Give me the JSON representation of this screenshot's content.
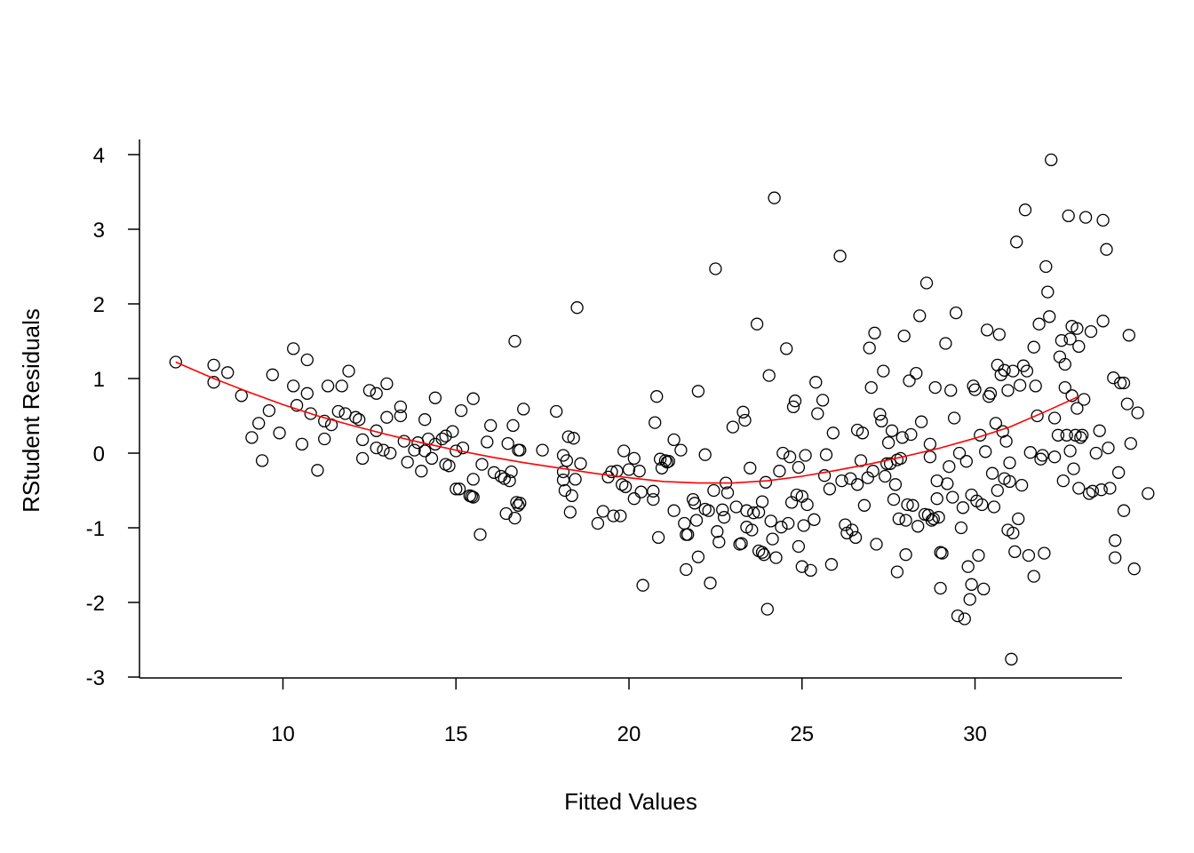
{
  "chart_data": {
    "type": "scatter",
    "title": "",
    "xlabel": "Fitted Values",
    "ylabel": "RStudent Residuals",
    "xlim": [
      5.9,
      34.3
    ],
    "ylim": [
      -3.05,
      4.2
    ],
    "x_ticks": [
      10,
      15,
      20,
      25,
      30
    ],
    "y_ticks": [
      -3,
      -2,
      -1,
      0,
      1,
      2,
      3,
      4
    ],
    "x_tick_labels": [
      "10",
      "15",
      "20",
      "25",
      "30"
    ],
    "y_tick_labels": [
      "-3",
      "-2",
      "-1",
      "0",
      "1",
      "2",
      "3",
      "4"
    ],
    "grid": false,
    "colors": {
      "points": "#000000",
      "smoother": "#ff0000"
    },
    "smoother": {
      "x": [
        6.9,
        8,
        9,
        10,
        11,
        12,
        13,
        14,
        15,
        16,
        17,
        18,
        19,
        20,
        21,
        22,
        23,
        24,
        25,
        26,
        27,
        28,
        29,
        30,
        31,
        32,
        33
      ],
      "y": [
        1.22,
        1.0,
        0.82,
        0.65,
        0.5,
        0.37,
        0.25,
        0.14,
        0.04,
        -0.05,
        -0.13,
        -0.2,
        -0.27,
        -0.33,
        -0.38,
        -0.4,
        -0.4,
        -0.37,
        -0.31,
        -0.23,
        -0.14,
        -0.04,
        0.07,
        0.2,
        0.35,
        0.55,
        0.76
      ]
    },
    "points": [
      [
        6.9,
        1.22
      ],
      [
        8.0,
        1.18
      ],
      [
        8.0,
        0.95
      ],
      [
        8.4,
        1.08
      ],
      [
        8.8,
        0.77
      ],
      [
        9.1,
        0.21
      ],
      [
        9.3,
        0.4
      ],
      [
        9.4,
        -0.1
      ],
      [
        9.6,
        0.57
      ],
      [
        9.7,
        1.05
      ],
      [
        9.9,
        0.27
      ],
      [
        10.3,
        1.4
      ],
      [
        10.3,
        0.9
      ],
      [
        10.4,
        0.64
      ],
      [
        10.55,
        0.12
      ],
      [
        10.7,
        0.8
      ],
      [
        10.7,
        1.25
      ],
      [
        10.8,
        0.53
      ],
      [
        11.0,
        -0.23
      ],
      [
        11.2,
        0.19
      ],
      [
        11.2,
        0.43
      ],
      [
        11.3,
        0.9
      ],
      [
        11.4,
        0.38
      ],
      [
        11.6,
        0.56
      ],
      [
        11.7,
        0.9
      ],
      [
        11.8,
        0.53
      ],
      [
        11.9,
        1.1
      ],
      [
        12.1,
        0.48
      ],
      [
        12.2,
        0.45
      ],
      [
        12.3,
        -0.07
      ],
      [
        12.3,
        0.18
      ],
      [
        12.5,
        0.84
      ],
      [
        12.7,
        0.8
      ],
      [
        12.7,
        0.07
      ],
      [
        12.7,
        0.3
      ],
      [
        12.9,
        0.04
      ],
      [
        13.0,
        0.93
      ],
      [
        13.0,
        0.48
      ],
      [
        13.1,
        0.0
      ],
      [
        13.4,
        0.62
      ],
      [
        13.4,
        0.5
      ],
      [
        13.5,
        0.16
      ],
      [
        13.6,
        -0.12
      ],
      [
        13.8,
        0.04
      ],
      [
        13.9,
        0.14
      ],
      [
        14.0,
        -0.24
      ],
      [
        14.1,
        0.03
      ],
      [
        14.1,
        0.45
      ],
      [
        14.2,
        0.19
      ],
      [
        14.3,
        -0.07
      ],
      [
        14.4,
        0.12
      ],
      [
        14.4,
        0.74
      ],
      [
        14.6,
        0.19
      ],
      [
        14.7,
        -0.15
      ],
      [
        14.7,
        0.23
      ],
      [
        14.8,
        -0.17
      ],
      [
        14.9,
        0.29
      ],
      [
        15.0,
        0.03
      ],
      [
        15.0,
        -0.48
      ],
      [
        15.1,
        -0.48
      ],
      [
        15.15,
        0.57
      ],
      [
        15.2,
        0.07
      ],
      [
        15.4,
        -0.57
      ],
      [
        15.45,
        -0.58
      ],
      [
        15.5,
        -0.59
      ],
      [
        15.5,
        0.73
      ],
      [
        15.5,
        -0.35
      ],
      [
        15.7,
        -1.09
      ],
      [
        15.75,
        -0.15
      ],
      [
        15.9,
        0.15
      ],
      [
        16.0,
        0.37
      ],
      [
        16.1,
        -0.26
      ],
      [
        16.3,
        -0.31
      ],
      [
        16.4,
        -0.34
      ],
      [
        16.45,
        -0.81
      ],
      [
        16.5,
        0.13
      ],
      [
        16.55,
        -0.37
      ],
      [
        16.6,
        -0.25
      ],
      [
        16.65,
        0.37
      ],
      [
        16.7,
        -0.87
      ],
      [
        16.7,
        1.5
      ],
      [
        16.75,
        -0.66
      ],
      [
        16.8,
        -0.7
      ],
      [
        16.8,
        0.04
      ],
      [
        16.85,
        -0.67
      ],
      [
        16.85,
        0.04
      ],
      [
        16.95,
        0.59
      ],
      [
        17.5,
        0.04
      ],
      [
        17.9,
        0.56
      ],
      [
        18.1,
        -0.03
      ],
      [
        18.1,
        -0.25
      ],
      [
        18.1,
        -0.36
      ],
      [
        18.15,
        -0.5
      ],
      [
        18.2,
        -0.1
      ],
      [
        18.25,
        0.22
      ],
      [
        18.3,
        -0.79
      ],
      [
        18.35,
        -0.57
      ],
      [
        18.4,
        0.2
      ],
      [
        18.45,
        -0.35
      ],
      [
        18.5,
        1.95
      ],
      [
        18.6,
        -0.14
      ],
      [
        19.1,
        -0.94
      ],
      [
        19.25,
        -0.78
      ],
      [
        19.4,
        -0.32
      ],
      [
        19.5,
        -0.25
      ],
      [
        19.55,
        -0.84
      ],
      [
        19.65,
        -0.24
      ],
      [
        19.75,
        -0.84
      ],
      [
        19.8,
        -0.42
      ],
      [
        19.85,
        0.03
      ],
      [
        19.9,
        -0.45
      ],
      [
        20.0,
        -0.22
      ],
      [
        20.15,
        -0.07
      ],
      [
        20.15,
        -0.61
      ],
      [
        20.3,
        -0.24
      ],
      [
        20.35,
        -0.52
      ],
      [
        20.4,
        -1.77
      ],
      [
        20.7,
        -0.51
      ],
      [
        20.7,
        -0.62
      ],
      [
        20.75,
        0.41
      ],
      [
        20.8,
        0.76
      ],
      [
        20.85,
        -1.13
      ],
      [
        20.9,
        -0.08
      ],
      [
        20.95,
        -0.2
      ],
      [
        21.05,
        -0.1
      ],
      [
        21.1,
        -0.12
      ],
      [
        21.15,
        -0.11
      ],
      [
        21.3,
        0.18
      ],
      [
        21.3,
        -0.77
      ],
      [
        21.5,
        0.04
      ],
      [
        21.6,
        -0.94
      ],
      [
        21.65,
        -1.56
      ],
      [
        21.65,
        -1.09
      ],
      [
        21.7,
        -1.09
      ],
      [
        21.85,
        -0.62
      ],
      [
        21.9,
        -0.67
      ],
      [
        21.95,
        -0.9
      ],
      [
        22.0,
        -1.39
      ],
      [
        22.0,
        0.83
      ],
      [
        22.2,
        -0.75
      ],
      [
        22.2,
        -0.02
      ],
      [
        22.3,
        -0.77
      ],
      [
        22.35,
        -1.74
      ],
      [
        22.45,
        -0.5
      ],
      [
        22.5,
        2.47
      ],
      [
        22.55,
        -1.05
      ],
      [
        22.6,
        -1.19
      ],
      [
        22.7,
        -0.76
      ],
      [
        22.75,
        -0.86
      ],
      [
        22.8,
        -0.4
      ],
      [
        22.85,
        -0.53
      ],
      [
        23.0,
        0.35
      ],
      [
        23.1,
        -0.72
      ],
      [
        23.2,
        -1.22
      ],
      [
        23.25,
        -1.21
      ],
      [
        23.3,
        0.55
      ],
      [
        23.35,
        0.44
      ],
      [
        23.4,
        -0.99
      ],
      [
        23.4,
        -0.77
      ],
      [
        23.5,
        -0.2
      ],
      [
        23.55,
        -1.03
      ],
      [
        23.6,
        -0.8
      ],
      [
        23.7,
        1.73
      ],
      [
        23.75,
        -1.31
      ],
      [
        23.75,
        -0.79
      ],
      [
        23.85,
        -1.33
      ],
      [
        23.85,
        -0.65
      ],
      [
        23.9,
        -1.36
      ],
      [
        23.95,
        -0.39
      ],
      [
        24.0,
        -2.09
      ],
      [
        24.05,
        1.04
      ],
      [
        24.1,
        -0.91
      ],
      [
        24.15,
        -1.15
      ],
      [
        24.2,
        3.42
      ],
      [
        24.25,
        -1.4
      ],
      [
        24.35,
        -0.24
      ],
      [
        24.4,
        -0.99
      ],
      [
        24.45,
        0.0
      ],
      [
        24.55,
        1.4
      ],
      [
        24.6,
        -0.94
      ],
      [
        24.65,
        -0.05
      ],
      [
        24.7,
        -0.66
      ],
      [
        24.75,
        0.62
      ],
      [
        24.8,
        0.7
      ],
      [
        24.85,
        -0.56
      ],
      [
        24.9,
        -1.25
      ],
      [
        24.9,
        -0.19
      ],
      [
        25.0,
        -1.52
      ],
      [
        25.0,
        -0.58
      ],
      [
        25.05,
        -0.97
      ],
      [
        25.1,
        -0.03
      ],
      [
        25.15,
        -0.69
      ],
      [
        25.25,
        -1.57
      ],
      [
        25.35,
        -0.89
      ],
      [
        25.4,
        0.95
      ],
      [
        25.45,
        0.53
      ],
      [
        25.6,
        0.71
      ],
      [
        25.65,
        -0.3
      ],
      [
        25.7,
        -0.02
      ],
      [
        25.8,
        -0.48
      ],
      [
        25.85,
        -1.49
      ],
      [
        25.9,
        0.27
      ],
      [
        26.1,
        2.64
      ],
      [
        26.15,
        -0.37
      ],
      [
        26.25,
        -0.96
      ],
      [
        26.3,
        -1.07
      ],
      [
        26.4,
        -0.34
      ],
      [
        26.45,
        -1.03
      ],
      [
        26.55,
        -1.13
      ],
      [
        26.6,
        0.31
      ],
      [
        26.6,
        -0.42
      ],
      [
        26.7,
        -0.1
      ],
      [
        26.75,
        0.27
      ],
      [
        26.8,
        -0.7
      ],
      [
        26.9,
        -0.33
      ],
      [
        26.95,
        1.41
      ],
      [
        27.0,
        0.88
      ],
      [
        27.05,
        -0.24
      ],
      [
        27.1,
        1.61
      ],
      [
        27.15,
        -1.22
      ],
      [
        27.25,
        0.52
      ],
      [
        27.3,
        0.43
      ],
      [
        27.35,
        1.1
      ],
      [
        27.4,
        -0.31
      ],
      [
        27.45,
        -0.14
      ],
      [
        27.5,
        0.14
      ],
      [
        27.55,
        -0.14
      ],
      [
        27.6,
        0.3
      ],
      [
        27.65,
        -0.62
      ],
      [
        27.7,
        -0.42
      ],
      [
        27.75,
        -0.09
      ],
      [
        27.75,
        -1.59
      ],
      [
        27.8,
        -0.88
      ],
      [
        27.85,
        -0.07
      ],
      [
        27.9,
        0.21
      ],
      [
        27.95,
        1.57
      ],
      [
        28.0,
        -0.9
      ],
      [
        28.0,
        -1.36
      ],
      [
        28.05,
        -0.69
      ],
      [
        28.1,
        0.97
      ],
      [
        28.15,
        0.25
      ],
      [
        28.2,
        -0.7
      ],
      [
        28.3,
        1.07
      ],
      [
        28.35,
        -0.98
      ],
      [
        28.4,
        1.84
      ],
      [
        28.45,
        0.42
      ],
      [
        28.55,
        -0.82
      ],
      [
        28.6,
        2.28
      ],
      [
        28.65,
        -0.83
      ],
      [
        28.7,
        -0.05
      ],
      [
        28.7,
        0.12
      ],
      [
        28.75,
        -0.9
      ],
      [
        28.8,
        -0.88
      ],
      [
        28.85,
        0.88
      ],
      [
        28.9,
        -0.61
      ],
      [
        28.9,
        -0.37
      ],
      [
        28.95,
        -0.86
      ],
      [
        29.0,
        -1.33
      ],
      [
        29.0,
        -1.81
      ],
      [
        29.05,
        -1.34
      ],
      [
        29.15,
        1.47
      ],
      [
        29.2,
        -0.41
      ],
      [
        29.25,
        -0.18
      ],
      [
        29.3,
        0.84
      ],
      [
        29.35,
        -0.59
      ],
      [
        29.4,
        0.47
      ],
      [
        29.45,
        1.88
      ],
      [
        29.5,
        -2.18
      ],
      [
        29.55,
        0.0
      ],
      [
        29.6,
        -1.0
      ],
      [
        29.65,
        -0.73
      ],
      [
        29.7,
        -2.22
      ],
      [
        29.75,
        -0.11
      ],
      [
        29.8,
        -1.52
      ],
      [
        29.85,
        -1.96
      ],
      [
        29.9,
        -0.56
      ],
      [
        29.9,
        -1.76
      ],
      [
        29.95,
        0.9
      ],
      [
        30.0,
        0.85
      ],
      [
        30.05,
        -0.64
      ],
      [
        30.1,
        -1.37
      ],
      [
        30.15,
        0.24
      ],
      [
        30.2,
        -0.69
      ],
      [
        30.25,
        -1.82
      ],
      [
        30.3,
        0.02
      ],
      [
        30.35,
        1.65
      ],
      [
        30.4,
        0.76
      ],
      [
        30.45,
        0.8
      ],
      [
        30.5,
        -0.27
      ],
      [
        30.55,
        -0.72
      ],
      [
        30.6,
        0.4
      ],
      [
        30.65,
        -0.5
      ],
      [
        30.65,
        1.18
      ],
      [
        30.7,
        1.59
      ],
      [
        30.75,
        1.05
      ],
      [
        30.8,
        0.29
      ],
      [
        30.85,
        1.11
      ],
      [
        30.85,
        -0.34
      ],
      [
        30.9,
        0.16
      ],
      [
        30.95,
        -1.03
      ],
      [
        30.95,
        0.84
      ],
      [
        31.0,
        -0.38
      ],
      [
        31.0,
        -0.13
      ],
      [
        31.05,
        -2.76
      ],
      [
        31.1,
        -1.07
      ],
      [
        31.1,
        1.1
      ],
      [
        31.15,
        -1.32
      ],
      [
        31.2,
        2.83
      ],
      [
        31.25,
        -0.88
      ],
      [
        31.3,
        0.91
      ],
      [
        31.35,
        -0.43
      ],
      [
        31.4,
        1.17
      ],
      [
        31.45,
        3.26
      ],
      [
        31.5,
        1.1
      ],
      [
        31.55,
        -1.37
      ],
      [
        31.6,
        0.01
      ],
      [
        31.7,
        -1.65
      ],
      [
        31.7,
        1.42
      ],
      [
        31.75,
        0.9
      ],
      [
        31.8,
        0.5
      ],
      [
        31.85,
        1.73
      ],
      [
        31.9,
        -0.08
      ],
      [
        31.95,
        -0.03
      ],
      [
        32.0,
        -1.34
      ],
      [
        32.05,
        2.5
      ],
      [
        32.1,
        2.16
      ],
      [
        32.15,
        1.83
      ],
      [
        32.2,
        3.93
      ],
      [
        32.3,
        -0.05
      ],
      [
        32.3,
        0.47
      ],
      [
        32.4,
        0.24
      ],
      [
        32.45,
        1.29
      ],
      [
        32.5,
        1.51
      ],
      [
        32.55,
        -0.37
      ],
      [
        32.6,
        0.88
      ],
      [
        32.6,
        1.19
      ],
      [
        32.65,
        0.24
      ],
      [
        32.7,
        3.18
      ],
      [
        32.75,
        1.53
      ],
      [
        32.75,
        0.03
      ],
      [
        32.8,
        0.77
      ],
      [
        32.8,
        1.7
      ],
      [
        32.85,
        -0.21
      ],
      [
        32.9,
        0.24
      ],
      [
        32.95,
        0.6
      ],
      [
        32.95,
        1.67
      ],
      [
        33.0,
        -0.47
      ],
      [
        33.0,
        1.43
      ],
      [
        33.05,
        0.21
      ],
      [
        33.1,
        0.24
      ],
      [
        33.15,
        0.72
      ],
      [
        33.2,
        3.16
      ],
      [
        33.3,
        -0.54
      ],
      [
        33.35,
        1.63
      ],
      [
        33.4,
        -0.51
      ],
      [
        33.5,
        0.0
      ],
      [
        33.6,
        0.3
      ],
      [
        33.65,
        -0.49
      ],
      [
        33.7,
        1.77
      ],
      [
        33.7,
        3.12
      ],
      [
        33.8,
        2.73
      ],
      [
        33.85,
        0.07
      ],
      [
        33.9,
        -0.47
      ],
      [
        34.0,
        1.01
      ],
      [
        34.05,
        -1.4
      ],
      [
        34.05,
        -1.17
      ],
      [
        34.15,
        -0.26
      ],
      [
        34.2,
        0.94
      ],
      [
        34.3,
        0.94
      ],
      [
        34.3,
        -0.77
      ],
      [
        34.4,
        0.66
      ],
      [
        34.45,
        1.58
      ],
      [
        34.5,
        0.13
      ],
      [
        34.6,
        -1.55
      ],
      [
        34.7,
        0.54
      ],
      [
        35.0,
        -0.54
      ]
    ]
  }
}
